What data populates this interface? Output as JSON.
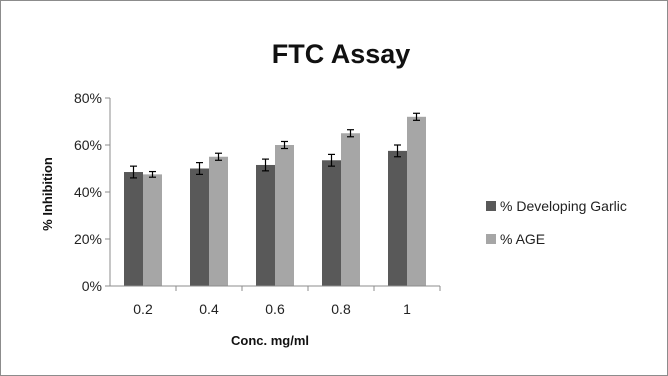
{
  "chart_data": {
    "type": "bar",
    "title": "FTC Assay",
    "xlabel": "Conc. mg/ml",
    "ylabel": "% Inhibition",
    "categories": [
      "0.2",
      "0.4",
      "0.6",
      "0.8",
      "1"
    ],
    "ylim": [
      0,
      80
    ],
    "y_ticks": [
      "0%",
      "20%",
      "40%",
      "60%",
      "80%"
    ],
    "y_tick_values": [
      0,
      20,
      40,
      60,
      80
    ],
    "grid": false,
    "legend_position": "right",
    "series": [
      {
        "name": "% Developing Garlic",
        "color": "#595959",
        "values": [
          48.5,
          50,
          51.5,
          53.5,
          57.5
        ],
        "errors": [
          2.5,
          2.5,
          2.5,
          2.5,
          2.5
        ]
      },
      {
        "name": "% AGE",
        "color": "#a6a6a6",
        "values": [
          47.5,
          55,
          60,
          65,
          72
        ],
        "errors": [
          1.2,
          1.5,
          1.5,
          1.5,
          1.5
        ]
      }
    ]
  }
}
